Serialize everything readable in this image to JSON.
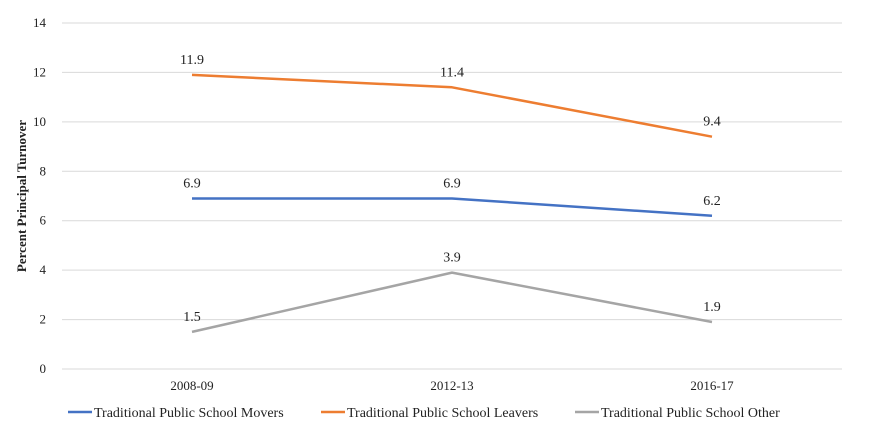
{
  "chart_data": {
    "type": "line",
    "title": "",
    "xlabel": "",
    "ylabel": "Percent Principal Turnover",
    "categories": [
      "2008-09",
      "2012-13",
      "2016-17"
    ],
    "ylim": [
      0,
      14
    ],
    "yticks": [
      0,
      2,
      4,
      6,
      8,
      10,
      12,
      14
    ],
    "grid": "horizontal",
    "legend": "bottom",
    "series": [
      {
        "name": "Traditional Public School Movers",
        "color": "#4472C4",
        "values": [
          6.9,
          6.9,
          6.2
        ],
        "labels": [
          "6.9",
          "6.9",
          "6.2"
        ]
      },
      {
        "name": "Traditional Public School Leavers",
        "color": "#ED7D31",
        "values": [
          11.9,
          11.4,
          9.4
        ],
        "labels": [
          "11.9",
          "11.4",
          "9.4"
        ]
      },
      {
        "name": "Traditional Public School Other",
        "color": "#A5A5A5",
        "values": [
          1.5,
          3.9,
          1.9
        ],
        "labels": [
          "1.5",
          "3.9",
          "1.9"
        ]
      }
    ]
  }
}
